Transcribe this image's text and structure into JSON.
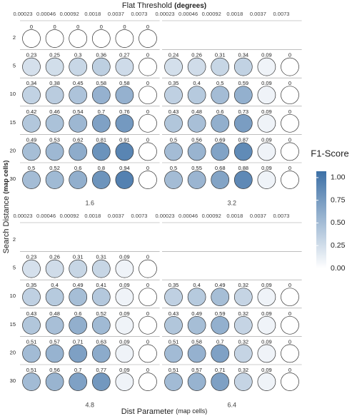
{
  "chart_data": {
    "type": "dot-grid",
    "x_title": "Flat Threshold",
    "x_title_unit": "(degrees)",
    "y_title": "Search Distance",
    "y_title_unit": "(map cells)",
    "facet_title": "Dist Parameter",
    "facet_title_unit": "(map cells)",
    "columns": [
      "0.00023",
      "0.00046",
      "0.00092",
      "0.0018",
      "0.0037",
      "0.0073"
    ],
    "rows": [
      "2",
      "5",
      "10",
      "15",
      "20",
      "30"
    ],
    "panels": [
      {
        "name": "1.6",
        "values": [
          [
            0,
            0,
            0,
            0,
            0,
            0
          ],
          [
            0.23,
            0.25,
            0.3,
            0.36,
            0.27,
            0
          ],
          [
            0.34,
            0.38,
            0.45,
            0.58,
            0.58,
            0
          ],
          [
            0.42,
            0.46,
            0.54,
            0.7,
            0.76,
            0
          ],
          [
            0.49,
            0.53,
            0.62,
            0.81,
            0.91,
            0
          ],
          [
            0.5,
            0.52,
            0.6,
            0.8,
            0.94,
            0
          ]
        ]
      },
      {
        "name": "3.2",
        "values": [
          [
            null,
            null,
            null,
            null,
            null,
            null
          ],
          [
            0.24,
            0.26,
            0.31,
            0.34,
            0.09,
            0
          ],
          [
            0.35,
            0.4,
            0.5,
            0.59,
            0.09,
            0
          ],
          [
            0.43,
            0.48,
            0.6,
            0.73,
            0.09,
            0
          ],
          [
            0.5,
            0.56,
            0.69,
            0.87,
            0.09,
            0
          ],
          [
            0.5,
            0.55,
            0.68,
            0.88,
            0.09,
            0
          ]
        ]
      },
      {
        "name": "4.8",
        "values": [
          [
            null,
            null,
            null,
            null,
            null,
            null
          ],
          [
            0.23,
            0.26,
            0.31,
            0.31,
            0.09,
            0
          ],
          [
            0.35,
            0.4,
            0.49,
            0.41,
            0.09,
            0
          ],
          [
            0.43,
            0.48,
            0.6,
            0.52,
            0.09,
            0
          ],
          [
            0.51,
            0.57,
            0.71,
            0.63,
            0.09,
            0
          ],
          [
            0.51,
            0.56,
            0.7,
            0.77,
            0.09,
            0
          ]
        ]
      },
      {
        "name": "6.4",
        "values": [
          [
            null,
            null,
            null,
            null,
            null,
            null
          ],
          [
            null,
            null,
            null,
            null,
            null,
            null
          ],
          [
            0.35,
            0.4,
            0.49,
            0.32,
            0.09,
            0
          ],
          [
            0.43,
            0.49,
            0.59,
            0.32,
            0.09,
            0
          ],
          [
            0.51,
            0.58,
            0.7,
            0.32,
            0.09,
            0
          ],
          [
            0.51,
            0.57,
            0.71,
            0.32,
            0.09,
            0
          ]
        ]
      }
    ],
    "legend_title": "F1-Score",
    "clim": [
      0,
      1.07
    ],
    "cticks": [
      {
        "value": 0,
        "label": "0.00"
      },
      {
        "value": 0.25,
        "label": "0.25"
      },
      {
        "value": 0.5,
        "label": "0.50"
      },
      {
        "value": 0.75,
        "label": "0.75"
      },
      {
        "value": 1,
        "label": "1.00"
      }
    ],
    "color_range": [
      "#ffffff",
      "#3c70a6"
    ]
  }
}
